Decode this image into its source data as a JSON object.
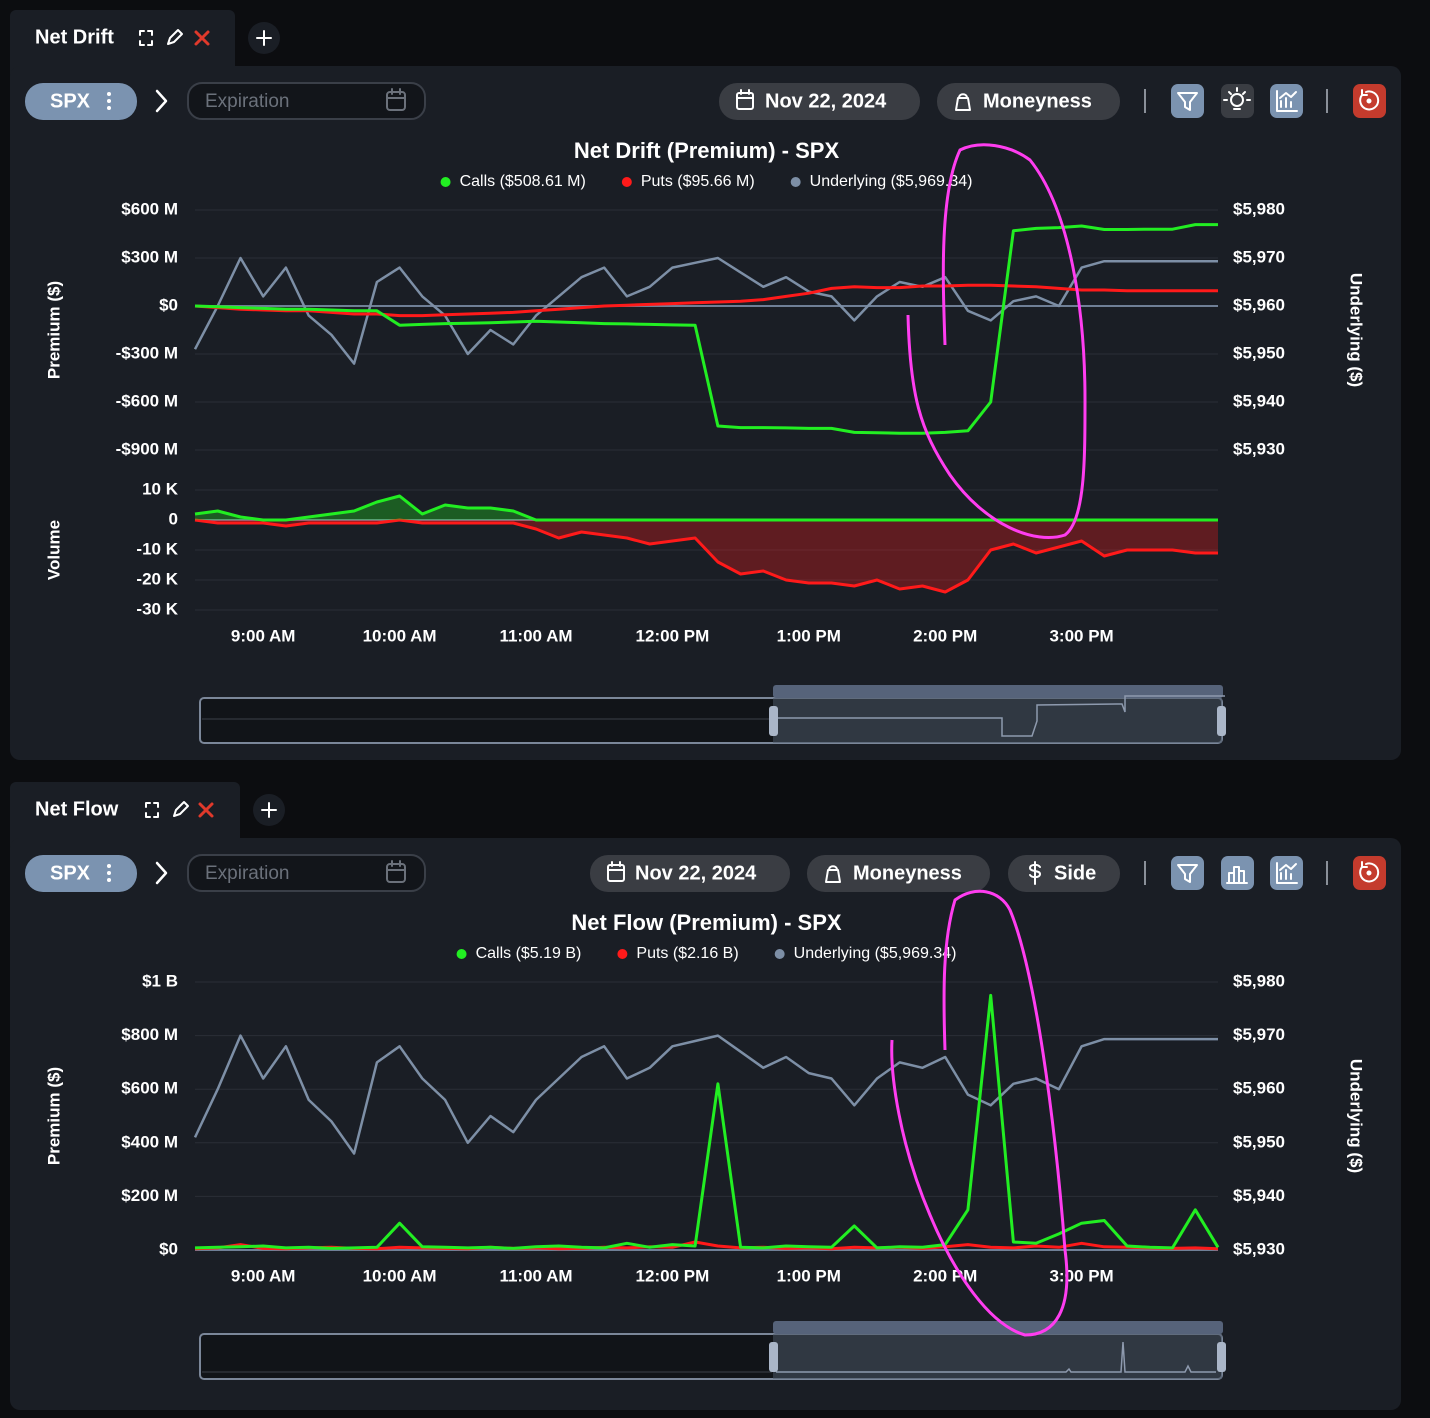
{
  "panels": [
    {
      "tab": "Net Drift",
      "symbol": "SPX",
      "expiration": "Expiration",
      "date": "Nov 22, 2024",
      "buttons": [
        "Moneyness"
      ]
    },
    {
      "tab": "Net Flow",
      "symbol": "SPX",
      "expiration": "Expiration",
      "date": "Nov 22, 2024",
      "buttons": [
        "Moneyness",
        "Side"
      ]
    }
  ],
  "chart_data": [
    {
      "type": "line",
      "title": "Net Drift (Premium) - SPX",
      "y_label": "Premium ($)",
      "y2_label": "Underlying ($)",
      "ylim": [
        -900,
        600
      ],
      "yticks": [
        {
          "value": 600,
          "label": "$600 M"
        },
        {
          "value": 300,
          "label": "$300 M"
        },
        {
          "value": 0,
          "label": "$0"
        },
        {
          "value": -300,
          "label": "-$300 M"
        },
        {
          "value": -600,
          "label": "-$600 M"
        },
        {
          "value": -900,
          "label": "-$900 M"
        }
      ],
      "y2lim": [
        5930,
        5980
      ],
      "y2ticks": [
        {
          "value": 5980,
          "label": "$5,980"
        },
        {
          "value": 5970,
          "label": "$5,970"
        },
        {
          "value": 5960,
          "label": "$5,960"
        },
        {
          "value": 5950,
          "label": "$5,950"
        },
        {
          "value": 5940,
          "label": "$5,940"
        },
        {
          "value": 5930,
          "label": "$5,930"
        }
      ],
      "grid": true,
      "series": [
        {
          "name": "Calls ($508.61 M)",
          "color": "#22ee22",
          "values": [
            0,
            -5,
            -10,
            -15,
            -20,
            -20,
            -25,
            -30,
            -30,
            -120,
            -115,
            -110,
            -108,
            -105,
            -100,
            -95,
            -100,
            -105,
            -110,
            -112,
            -115,
            -118,
            -120,
            -750,
            -760,
            -760,
            -762,
            -765,
            -765,
            -790,
            -792,
            -795,
            -795,
            -790,
            -780,
            -600,
            470,
            485,
            490,
            500,
            478,
            478,
            480,
            480,
            508.61,
            508.61
          ]
        },
        {
          "name": "Puts ($95.66 M)",
          "color": "#ff1a1a",
          "values": [
            0,
            -10,
            -20,
            -25,
            -30,
            -30,
            -40,
            -50,
            -50,
            -60,
            -60,
            -55,
            -50,
            -45,
            -40,
            -30,
            -20,
            -10,
            0,
            5,
            10,
            15,
            20,
            25,
            30,
            40,
            60,
            80,
            110,
            120,
            115,
            115,
            125,
            125,
            130,
            130,
            125,
            120,
            110,
            100,
            100,
            95.66,
            95.66,
            95.66,
            95.66,
            95.66
          ]
        },
        {
          "name": "Underlying ($5,969.34)",
          "color": "#7d8fa6",
          "axis": "y2",
          "values": [
            5951,
            5960,
            5970,
            5962,
            5968,
            5958,
            5954,
            5948,
            5965,
            5968,
            5962,
            5958,
            5950,
            5955,
            5952,
            5958,
            5962,
            5966,
            5968,
            5962,
            5964,
            5968,
            5969,
            5970,
            5967,
            5964,
            5966,
            5963,
            5962,
            5957,
            5962,
            5965,
            5964,
            5966,
            5959,
            5957,
            5961,
            5962,
            5960,
            5968,
            5969.34,
            5969.34,
            5969.34,
            5969.34,
            5969.34,
            5969.34
          ]
        }
      ]
    },
    {
      "type": "area",
      "y_label": "Volume",
      "categories": [
        null,
        null,
        null,
        "9:00 AM",
        null,
        null,
        null,
        null,
        null,
        "10:00 AM",
        null,
        null,
        null,
        null,
        null,
        "11:00 AM",
        null,
        null,
        null,
        null,
        null,
        "12:00 PM",
        null,
        null,
        null,
        null,
        null,
        "1:00 PM",
        null,
        null,
        null,
        null,
        null,
        "2:00 PM",
        null,
        null,
        null,
        null,
        null,
        "3:00 PM",
        null,
        null,
        null,
        null,
        null,
        null
      ],
      "ylim": [
        -30,
        10
      ],
      "yticks": [
        {
          "value": 10,
          "label": "10 K"
        },
        0,
        {
          "value": -10,
          "label": "-10 K"
        },
        {
          "value": -20,
          "label": "-20 K"
        },
        {
          "value": -30,
          "label": "-30 K"
        }
      ],
      "grid": true,
      "series": [
        {
          "color": "#22ee22",
          "values": [
            2,
            3,
            1,
            0,
            0,
            1,
            2,
            3,
            6,
            8,
            2,
            5,
            4,
            4,
            3,
            0,
            0,
            0,
            0,
            0,
            0,
            0,
            0,
            0,
            0,
            0,
            0,
            0,
            0,
            0,
            0,
            0,
            0,
            0,
            0,
            0,
            0,
            0,
            0,
            0,
            0,
            0,
            0,
            0,
            0,
            0
          ]
        },
        {
          "color": "#ff1a1a",
          "values": [
            0,
            -1,
            -1,
            -1,
            -2,
            -1,
            -1,
            -1,
            -1,
            0,
            -1,
            -1,
            -1,
            -1,
            -1,
            -3,
            -6,
            -4,
            -5,
            -6,
            -8,
            -7,
            -6,
            -14,
            -18,
            -17,
            -20,
            -21,
            -21,
            -22,
            -20,
            -23,
            -22,
            -24,
            -20,
            -10,
            -8,
            -11,
            -9,
            -7,
            -12,
            -10,
            -10,
            -10,
            -11,
            -11
          ]
        }
      ]
    },
    {
      "type": "line",
      "title": "Net Flow (Premium) - SPX",
      "y_label": "Premium ($)",
      "y2_label": "Underlying ($)",
      "categories": [
        null,
        null,
        null,
        "9:00 AM",
        null,
        null,
        null,
        null,
        null,
        "10:00 AM",
        null,
        null,
        null,
        null,
        null,
        "11:00 AM",
        null,
        null,
        null,
        null,
        null,
        "12:00 PM",
        null,
        null,
        null,
        null,
        null,
        "1:00 PM",
        null,
        null,
        null,
        null,
        null,
        "2:00 PM",
        null,
        null,
        null,
        null,
        null,
        "3:00 PM",
        null,
        null,
        null,
        null,
        null,
        null
      ],
      "ylim": [
        0,
        1000
      ],
      "yticks": [
        {
          "value": 1000,
          "label": "$1 B"
        },
        {
          "value": 800,
          "label": "$800 M"
        },
        {
          "value": 600,
          "label": "$600 M"
        },
        {
          "value": 400,
          "label": "$400 M"
        },
        {
          "value": 200,
          "label": "$200 M"
        },
        {
          "value": 0,
          "label": "$0"
        }
      ],
      "y2lim": [
        5930,
        5980
      ],
      "y2ticks": [
        {
          "value": 5980,
          "label": "$5,980"
        },
        {
          "value": 5970,
          "label": "$5,970"
        },
        {
          "value": 5960,
          "label": "$5,960"
        },
        {
          "value": 5950,
          "label": "$5,950"
        },
        {
          "value": 5940,
          "label": "$5,940"
        },
        {
          "value": 5930,
          "label": "$5,930"
        }
      ],
      "grid": true,
      "series": [
        {
          "name": "Calls ($5.19 B)",
          "color": "#22ee22",
          "values": [
            8,
            10,
            12,
            15,
            8,
            10,
            6,
            8,
            10,
            100,
            12,
            10,
            8,
            10,
            6,
            12,
            15,
            10,
            8,
            25,
            10,
            20,
            15,
            620,
            10,
            8,
            15,
            12,
            10,
            90,
            8,
            12,
            10,
            20,
            150,
            950,
            30,
            25,
            60,
            100,
            110,
            15,
            10,
            8,
            150,
            10
          ]
        },
        {
          "name": "Puts ($2.16 B)",
          "color": "#ff1a1a",
          "values": [
            5,
            8,
            20,
            6,
            5,
            8,
            10,
            6,
            5,
            10,
            8,
            6,
            5,
            10,
            6,
            8,
            5,
            6,
            10,
            8,
            12,
            10,
            30,
            15,
            8,
            10,
            6,
            8,
            5,
            10,
            8,
            10,
            6,
            12,
            20,
            10,
            8,
            15,
            10,
            25,
            12,
            10,
            8,
            6,
            8,
            5
          ]
        },
        {
          "name": "Underlying ($5,969.34)",
          "color": "#7d8fa6",
          "axis": "y2",
          "values": [
            5951,
            5960,
            5970,
            5962,
            5968,
            5958,
            5954,
            5948,
            5965,
            5968,
            5962,
            5958,
            5950,
            5955,
            5952,
            5958,
            5962,
            5966,
            5968,
            5962,
            5964,
            5968,
            5969,
            5970,
            5967,
            5964,
            5966,
            5963,
            5962,
            5957,
            5962,
            5965,
            5964,
            5966,
            5959,
            5957,
            5961,
            5962,
            5960,
            5968,
            5969.34,
            5969.34,
            5969.34,
            5969.34,
            5969.34,
            5969.34
          ]
        }
      ]
    }
  ]
}
